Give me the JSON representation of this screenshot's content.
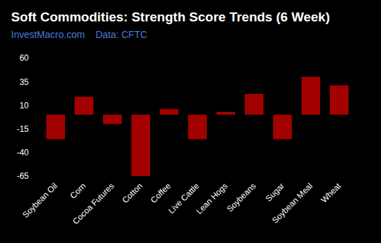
{
  "chart_data": {
    "type": "bar",
    "title": "Soft Commodities: Strength Score Trends (6 Week)",
    "subtitle": "InvestMacro.com    Data: CFTC",
    "categories": [
      "Soybean Oil",
      "Corn",
      "Cocoa Futures",
      "Cotton",
      "Coffee",
      "Live Cattle",
      "Lean Hogs",
      "Soybeans",
      "Sugar",
      "Soybean Meal",
      "Wheat"
    ],
    "values": [
      -26,
      19,
      -10,
      -65,
      6,
      -26,
      3,
      22,
      -26,
      40,
      31
    ],
    "color": "#a30000",
    "ylim": [
      -65,
      60
    ],
    "yticks": [
      -65,
      -40,
      -15,
      10,
      35,
      60
    ],
    "grid": false
  }
}
